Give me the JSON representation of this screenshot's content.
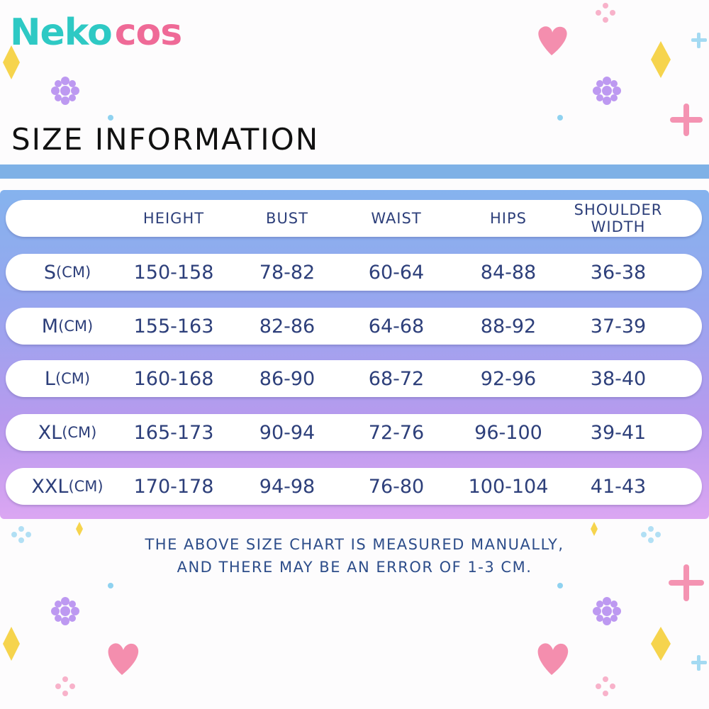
{
  "brand": {
    "part1": "Neko",
    "part2": "cos",
    "watermark": "NEKOCOS"
  },
  "title": "SIZE INFORMATION",
  "table": {
    "headers": [
      "",
      "HEIGHT",
      "BUST",
      "WAIST",
      "HIPS",
      "SHOULDER WIDTH"
    ],
    "rows": [
      {
        "size": "S",
        "unit": "(CM)",
        "values": [
          "150-158",
          "78-82",
          "60-64",
          "84-88",
          "36-38"
        ]
      },
      {
        "size": "M",
        "unit": "(CM)",
        "values": [
          "155-163",
          "82-86",
          "64-68",
          "88-92",
          "37-39"
        ]
      },
      {
        "size": "L",
        "unit": "(CM)",
        "values": [
          "160-168",
          "86-90",
          "68-72",
          "92-96",
          "38-40"
        ]
      },
      {
        "size": "XL",
        "unit": "(CM)",
        "values": [
          "165-173",
          "90-94",
          "72-76",
          "96-100",
          "39-41"
        ]
      },
      {
        "size": "XXL",
        "unit": "(CM)",
        "values": [
          "170-178",
          "94-98",
          "76-80",
          "100-104",
          "41-43"
        ]
      }
    ]
  },
  "note": {
    "line1": "THE ABOVE SIZE CHART IS MEASURED MANUALLY,",
    "line2": "AND THERE MAY BE AN ERROR OF 1-3 CM."
  },
  "colors": {
    "teal": "#2ec9c4",
    "pink": "#ef6a97",
    "text_blue": "#2d3f7a",
    "bar_blue": "#7eb1e6"
  }
}
